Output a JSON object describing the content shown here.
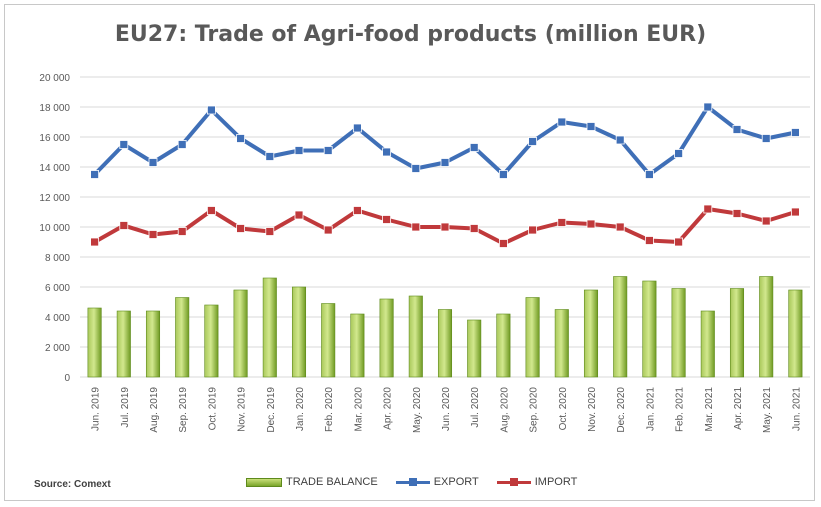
{
  "chart_data": {
    "type": "bar",
    "title": "EU27: Trade of Agri-food products (million EUR)",
    "source": "Source: Comext",
    "categories": [
      "Jun. 2019",
      "Jul. 2019",
      "Aug. 2019",
      "Sep. 2019",
      "Oct. 2019",
      "Nov. 2019",
      "Dec. 2019",
      "Jan. 2020",
      "Feb. 2020",
      "Mar. 2020",
      "Apr. 2020",
      "May. 2020",
      "Jun. 2020",
      "Jul. 2020",
      "Aug. 2020",
      "Sep. 2020",
      "Oct. 2020",
      "Nov. 2020",
      "Dec. 2020",
      "Jan. 2021",
      "Feb. 2021",
      "Mar. 2021",
      "Apr. 2021",
      "May. 2021",
      "Jun. 2021"
    ],
    "ylim": [
      0,
      20000
    ],
    "yticks": [
      0,
      2000,
      4000,
      6000,
      8000,
      10000,
      12000,
      14000,
      16000,
      18000,
      20000
    ],
    "ytick_labels": [
      "0",
      "2 000",
      "4 000",
      "6 000",
      "8 000",
      "10 000",
      "12 000",
      "14 000",
      "16 000",
      "18 000",
      "20 000"
    ],
    "grid": true,
    "legend_position": "bottom",
    "series": [
      {
        "name": "TRADE BALANCE",
        "type": "bar",
        "color": "#8db43a",
        "values": [
          4600,
          4400,
          4400,
          5300,
          4800,
          5800,
          6600,
          6000,
          4900,
          4200,
          5200,
          5400,
          4500,
          3800,
          4200,
          5300,
          4500,
          5800,
          6700,
          6400,
          5900,
          4400,
          5900,
          6700,
          5800
        ]
      },
      {
        "name": "EXPORT",
        "type": "line",
        "color": "#3f6fb7",
        "values": [
          13500,
          15500,
          14300,
          15500,
          17800,
          15900,
          14700,
          15100,
          15100,
          16600,
          15000,
          13900,
          14300,
          15300,
          13500,
          15700,
          17000,
          16700,
          15800,
          13500,
          14900,
          18000,
          16500,
          15900,
          16300
        ]
      },
      {
        "name": "IMPORT",
        "type": "line",
        "color": "#c0393b",
        "values": [
          9000,
          10100,
          9500,
          9700,
          11100,
          9900,
          9700,
          10800,
          9800,
          11100,
          10500,
          10000,
          10000,
          9900,
          8900,
          9800,
          10300,
          10200,
          10000,
          9100,
          9000,
          11200,
          10900,
          10400,
          11000
        ]
      }
    ]
  }
}
